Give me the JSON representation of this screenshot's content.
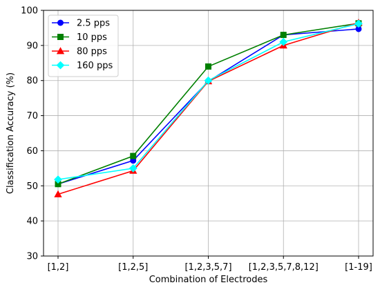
{
  "chart_data": {
    "type": "line",
    "title": "",
    "xlabel": "Combination of Electrodes",
    "ylabel": "Classification Accuracy (%)",
    "categories": [
      "[1,2]",
      "[1,2,5]",
      "[1,2,3,5,7]",
      "[1,2,3,5,7,8,12]",
      "[1-19]"
    ],
    "ylim": [
      30,
      100
    ],
    "yticks": [
      30,
      40,
      50,
      60,
      70,
      80,
      90,
      100
    ],
    "grid": true,
    "legend_position": "top-left",
    "series": [
      {
        "name": "2.5 pps",
        "color": "#0000ff",
        "marker": "circle",
        "values": [
          50.5,
          57.2,
          79.8,
          93.0,
          94.7
        ]
      },
      {
        "name": "10 pps",
        "color": "#008000",
        "marker": "square",
        "values": [
          50.5,
          58.5,
          84.0,
          93.0,
          96.3
        ]
      },
      {
        "name": "80 pps",
        "color": "#ff0000",
        "marker": "triangle",
        "values": [
          47.6,
          54.3,
          79.8,
          90.0,
          96.5
        ]
      },
      {
        "name": "160 pps",
        "color": "#00ffff",
        "marker": "diamond",
        "values": [
          51.8,
          55.0,
          80.0,
          91.0,
          96.2
        ]
      }
    ]
  }
}
